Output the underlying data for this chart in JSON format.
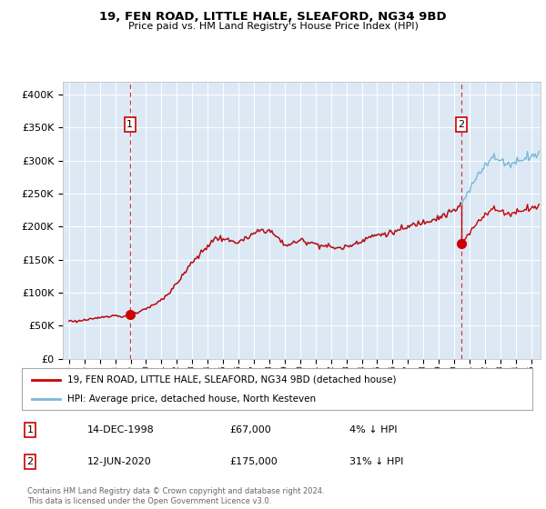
{
  "title": "19, FEN ROAD, LITTLE HALE, SLEAFORD, NG34 9BD",
  "subtitle": "Price paid vs. HM Land Registry's House Price Index (HPI)",
  "background_color": "#dce9f5",
  "ylabel_ticks": [
    "£0",
    "£50K",
    "£100K",
    "£150K",
    "£200K",
    "£250K",
    "£300K",
    "£350K",
    "£400K"
  ],
  "ytick_values": [
    0,
    50000,
    100000,
    150000,
    200000,
    250000,
    300000,
    350000,
    400000
  ],
  "ylim": [
    0,
    420000
  ],
  "sale1_date": 1998.958,
  "sale1_price": 67000,
  "sale2_date": 2020.458,
  "sale2_price": 175000,
  "legend_entry1": "19, FEN ROAD, LITTLE HALE, SLEAFORD, NG34 9BD (detached house)",
  "legend_entry2": "HPI: Average price, detached house, North Kesteven",
  "footer": "Contains HM Land Registry data © Crown copyright and database right 2024.\nThis data is licensed under the Open Government Licence v3.0.",
  "hpi_color": "#7ab8d9",
  "sale_color": "#cc0000",
  "vline_color": "#cc0000",
  "table_rows": [
    [
      "1",
      "14-DEC-1998",
      "£67,000",
      "4% ↓ HPI"
    ],
    [
      "2",
      "12-JUN-2020",
      "£175,000",
      "31% ↓ HPI"
    ]
  ],
  "hpi_anchors": {
    "1995.0": 58000,
    "1995.5": 57000,
    "1996.0": 59000,
    "1996.5": 60000,
    "1997.0": 63000,
    "1997.5": 65000,
    "1998.0": 66000,
    "1998.5": 64000,
    "1999.0": 67000,
    "1999.5": 70000,
    "2000.0": 76000,
    "2000.5": 82000,
    "2001.0": 90000,
    "2001.5": 100000,
    "2002.0": 115000,
    "2002.5": 130000,
    "2003.0": 148000,
    "2003.5": 158000,
    "2004.0": 172000,
    "2004.5": 183000,
    "2005.0": 183000,
    "2005.5": 178000,
    "2006.0": 178000,
    "2006.5": 182000,
    "2007.0": 190000,
    "2007.5": 196000,
    "2008.0": 195000,
    "2008.5": 185000,
    "2009.0": 173000,
    "2009.5": 175000,
    "2010.0": 180000,
    "2010.5": 178000,
    "2011.0": 175000,
    "2011.5": 172000,
    "2012.0": 170000,
    "2012.5": 168000,
    "2013.0": 170000,
    "2013.5": 175000,
    "2014.0": 180000,
    "2014.5": 185000,
    "2015.0": 188000,
    "2015.5": 190000,
    "2016.0": 192000,
    "2016.5": 196000,
    "2017.0": 200000,
    "2017.5": 205000,
    "2018.0": 208000,
    "2018.5": 212000,
    "2019.0": 215000,
    "2019.5": 220000,
    "2020.0": 225000,
    "2020.5": 235000,
    "2021.0": 255000,
    "2021.5": 278000,
    "2022.0": 295000,
    "2022.5": 305000,
    "2023.0": 300000,
    "2023.5": 295000,
    "2024.0": 298000,
    "2024.5": 305000,
    "2025.0": 308000
  }
}
